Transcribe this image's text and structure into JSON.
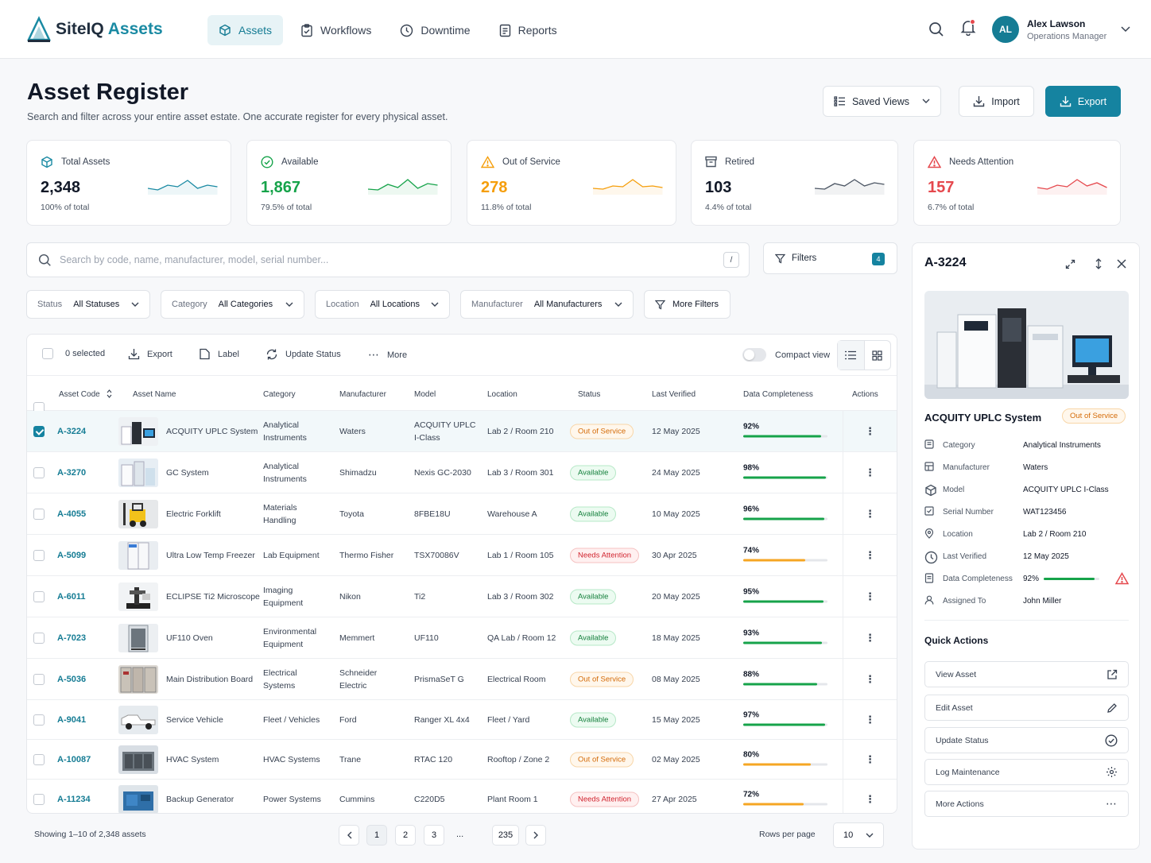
{
  "app": {
    "brand_main": "SiteIQ",
    "brand_accent": "Assets"
  },
  "nav": [
    {
      "label": "Assets",
      "icon": "cube-icon",
      "active": true
    },
    {
      "label": "Workflows",
      "icon": "clipboard-icon"
    },
    {
      "label": "Downtime",
      "icon": "clock-icon"
    },
    {
      "label": "Reports",
      "icon": "report-icon"
    }
  ],
  "user": {
    "initials": "AL",
    "name": "Alex Lawson",
    "role": "Operations Manager"
  },
  "page": {
    "title": "Asset Register",
    "subtitle": "Search and filter across your entire asset estate. One accurate register for every physical asset."
  },
  "header_buttons": {
    "saved_views": "Saved Views",
    "import": "Import",
    "export": "Export"
  },
  "kpis": [
    {
      "label": "Total Assets",
      "value": "2,348",
      "sub": "100% of total",
      "color": "#1a8aa3",
      "icon": "cube-icon"
    },
    {
      "label": "Available",
      "value": "1,867",
      "sub": "79.5% of total",
      "color": "#16a34a",
      "icon": "check-circle-icon"
    },
    {
      "label": "Out of Service",
      "value": "278",
      "sub": "11.8% of total",
      "color": "#f59e0b",
      "icon": "warning-icon"
    },
    {
      "label": "Retired",
      "value": "103",
      "sub": "4.4% of total",
      "color": "#4b5563",
      "icon": "archive-icon"
    },
    {
      "label": "Needs Attention",
      "value": "157",
      "sub": "6.7% of total",
      "color": "#e5484d",
      "icon": "alert-icon"
    }
  ],
  "search": {
    "placeholder": "Search by code, name, manufacturer, model, serial number...",
    "shortcut": "/"
  },
  "filters": {
    "label": "Filters",
    "count": "4"
  },
  "filter_selects": [
    {
      "label": "Status",
      "value": "All Statuses"
    },
    {
      "label": "Category",
      "value": "All Categories"
    },
    {
      "label": "Location",
      "value": "All Locations"
    },
    {
      "label": "Manufacturer",
      "value": "All Manufacturers"
    }
  ],
  "more_filters": "More Filters",
  "toolbar": {
    "selected": "0 selected",
    "export": "Export",
    "label": "Label",
    "update_status": "Update Status",
    "more": "More",
    "compact": "Compact view"
  },
  "columns": [
    "Asset Code",
    "Asset Name",
    "Category",
    "Manufacturer",
    "Model",
    "Location",
    "Status",
    "Last Verified",
    "Data Completeness",
    "Actions"
  ],
  "rows": [
    {
      "code": "A-3224",
      "name": "ACQUITY UPLC System",
      "category": [
        "Analytical",
        "Instruments"
      ],
      "manufacturer": [
        "Waters"
      ],
      "model": [
        "ACQUITY UPLC",
        "I-Class"
      ],
      "location": "Lab 2 / Room 210",
      "status": "Out of Service",
      "status_kind": "out",
      "verified": "12 May 2025",
      "completeness": "92%",
      "selected": true,
      "thumb": "lab"
    },
    {
      "code": "A-3270",
      "name": "GC System",
      "category": [
        "Analytical",
        "Instruments"
      ],
      "manufacturer": [
        "Shimadzu"
      ],
      "model": [
        "Nexis GC-2030"
      ],
      "location": "Lab 3 / Room 301",
      "status": "Available",
      "status_kind": "av",
      "verified": "24 May 2025",
      "completeness": "98%",
      "thumb": "lab2"
    },
    {
      "code": "A-4055",
      "name": "Electric Forklift",
      "category": [
        "Materials",
        "Handling"
      ],
      "manufacturer": [
        "Toyota"
      ],
      "model": [
        "8FBE18U"
      ],
      "location": "Warehouse A",
      "status": "Available",
      "status_kind": "av",
      "verified": "10 May 2025",
      "completeness": "96%",
      "thumb": "forklift"
    },
    {
      "code": "A-5099",
      "name": "Ultra Low Temp Freezer",
      "category": [
        "Lab Equipment"
      ],
      "manufacturer": [
        "Thermo Fisher"
      ],
      "model": [
        "TSX70086V"
      ],
      "location": "Lab 1 / Room 105",
      "status": "Needs Attention",
      "status_kind": "na",
      "verified": "30 Apr 2025",
      "completeness": "74%",
      "thumb": "freezer"
    },
    {
      "code": "A-6011",
      "name": "ECLIPSE Ti2 Microscope",
      "category": [
        "Imaging",
        "Equipment"
      ],
      "manufacturer": [
        "Nikon"
      ],
      "model": [
        "Ti2"
      ],
      "location": "Lab 3 / Room 302",
      "status": "Available",
      "status_kind": "av",
      "verified": "20 May 2025",
      "completeness": "95%",
      "thumb": "micro"
    },
    {
      "code": "A-7023",
      "name": "UF110 Oven",
      "category": [
        "Environmental",
        "Equipment"
      ],
      "manufacturer": [
        "Memmert"
      ],
      "model": [
        "UF110"
      ],
      "location": "QA Lab / Room 12",
      "status": "Available",
      "status_kind": "av",
      "verified": "18 May 2025",
      "completeness": "93%",
      "thumb": "oven"
    },
    {
      "code": "A-5036",
      "name": "Main Distribution Board",
      "category": [
        "Electrical",
        "Systems"
      ],
      "manufacturer": [
        "Schneider",
        "Electric"
      ],
      "model": [
        "PrismaSeT G"
      ],
      "location": "Electrical Room",
      "status": "Out of Service",
      "status_kind": "out",
      "verified": "08 May 2025",
      "completeness": "88%",
      "thumb": "board"
    },
    {
      "code": "A-9041",
      "name": "Service Vehicle",
      "category": [
        "Fleet / Vehicles"
      ],
      "manufacturer": [
        "Ford"
      ],
      "model": [
        "Ranger XL 4x4"
      ],
      "location": "Fleet / Yard",
      "status": "Available",
      "status_kind": "av",
      "verified": "15 May 2025",
      "completeness": "97%",
      "thumb": "truck"
    },
    {
      "code": "A-10087",
      "name": "HVAC System",
      "category": [
        "HVAC Systems"
      ],
      "manufacturer": [
        "Trane"
      ],
      "model": [
        "RTAC 120"
      ],
      "location": "Rooftop / Zone 2",
      "status": "Out of Service",
      "status_kind": "out",
      "verified": "02 May 2025",
      "completeness": "80%",
      "thumb": "hvac"
    },
    {
      "code": "A-11234",
      "name": "Backup Generator",
      "category": [
        "Power Systems"
      ],
      "manufacturer": [
        "Cummins"
      ],
      "model": [
        "C220D5"
      ],
      "location": "Plant Room 1",
      "status": "Needs Attention",
      "status_kind": "na",
      "verified": "27 Apr 2025",
      "completeness": "72%",
      "thumb": "gen"
    }
  ],
  "pagination": {
    "showing": "Showing 1–10 of 2,348 assets",
    "pages": [
      "1",
      "2",
      "3",
      "...",
      "235"
    ],
    "rows_label": "Rows per page",
    "rows_value": "10"
  },
  "panel": {
    "code": "A-3224",
    "name": "ACQUITY UPLC System",
    "status": "Out of Service",
    "details": [
      {
        "k": "Category",
        "v": "Analytical Instruments",
        "icon": "tag-icon"
      },
      {
        "k": "Manufacturer",
        "v": "Waters",
        "icon": "factory-icon"
      },
      {
        "k": "Model",
        "v": "ACQUITY UPLC I-Class",
        "icon": "cube-icon"
      },
      {
        "k": "Serial Number",
        "v": "WAT123456",
        "icon": "serial-icon"
      },
      {
        "k": "Location",
        "v": "Lab 2 / Room 210",
        "icon": "pin-icon"
      },
      {
        "k": "Last Verified",
        "v": "12 May 2025",
        "icon": "clock-icon"
      },
      {
        "k": "Data Completeness",
        "v": "92%",
        "icon": "doc-icon"
      },
      {
        "k": "Assigned To",
        "v": "John Miller",
        "icon": "user-icon"
      }
    ],
    "quick_title": "Quick Actions",
    "quick": [
      {
        "label": "View Asset",
        "icon": "external-link-icon"
      },
      {
        "label": "Edit Asset",
        "icon": "pencil-icon"
      },
      {
        "label": "Update Status",
        "icon": "check-circle-icon"
      },
      {
        "label": "Log Maintenance",
        "icon": "wrench-icon"
      },
      {
        "label": "More Actions",
        "icon": "ellipsis-icon"
      }
    ]
  }
}
